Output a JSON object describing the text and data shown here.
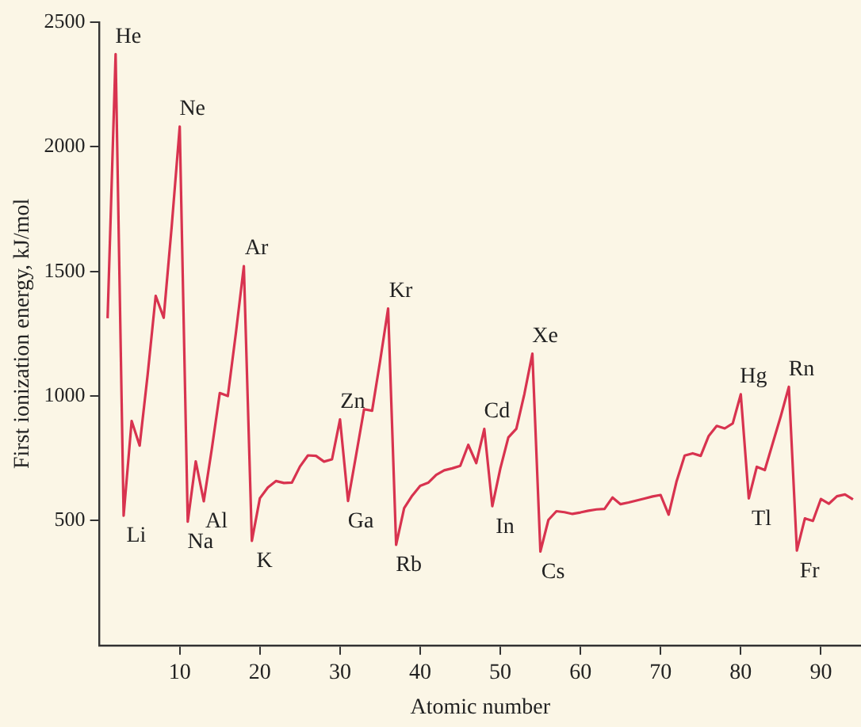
{
  "chart_data": {
    "type": "line",
    "xlabel": "Atomic number",
    "ylabel": "First ionization energy, kJ/mol",
    "x": [
      1,
      2,
      3,
      4,
      5,
      6,
      7,
      8,
      9,
      10,
      11,
      12,
      13,
      14,
      15,
      16,
      17,
      18,
      19,
      20,
      21,
      22,
      23,
      24,
      25,
      26,
      27,
      28,
      29,
      30,
      31,
      32,
      33,
      34,
      35,
      36,
      37,
      38,
      39,
      40,
      41,
      42,
      43,
      44,
      45,
      46,
      47,
      48,
      49,
      50,
      51,
      52,
      53,
      54,
      55,
      56,
      57,
      58,
      59,
      60,
      61,
      62,
      63,
      64,
      65,
      66,
      67,
      68,
      69,
      70,
      71,
      72,
      73,
      74,
      75,
      76,
      77,
      78,
      79,
      80,
      81,
      82,
      83,
      84,
      85,
      86,
      87,
      88,
      89,
      90,
      91,
      92,
      93,
      94
    ],
    "series": [
      {
        "color": "#d8334f",
        "values": [
          1312,
          2372,
          520,
          900,
          801,
          1086,
          1402,
          1314,
          1681,
          2081,
          496,
          738,
          578,
          787,
          1012,
          1000,
          1251,
          1521,
          419,
          590,
          633,
          659,
          651,
          653,
          717,
          762,
          760,
          737,
          746,
          906,
          579,
          762,
          947,
          941,
          1140,
          1351,
          403,
          550,
          600,
          640,
          652,
          684,
          702,
          710,
          720,
          804,
          731,
          868,
          558,
          709,
          834,
          869,
          1008,
          1170,
          376,
          503,
          538,
          534,
          527,
          533,
          540,
          545,
          547,
          593,
          566,
          573,
          581,
          589,
          597,
          603,
          524,
          659,
          761,
          770,
          760,
          840,
          880,
          870,
          890,
          1007,
          589,
          716,
          703,
          812,
          920,
          1037,
          380,
          509,
          499,
          587,
          568,
          598,
          605,
          585
        ]
      }
    ],
    "xlim": [
      0,
      95
    ],
    "xticks": [
      10,
      20,
      30,
      40,
      50,
      60,
      70,
      80,
      90
    ],
    "ylim": [
      0,
      2500
    ],
    "yticks": [
      500,
      1000,
      1500,
      2000,
      2500
    ],
    "grid": false,
    "legend": false,
    "marker": "none",
    "line_style": "solid",
    "annotations": [
      {
        "text": "He",
        "x": 2,
        "y": 2372
      },
      {
        "text": "Li",
        "x": 3,
        "y": 520
      },
      {
        "text": "Ne",
        "x": 10,
        "y": 2081
      },
      {
        "text": "Na",
        "x": 11,
        "y": 496
      },
      {
        "text": "Al",
        "x": 13,
        "y": 578
      },
      {
        "text": "Ar",
        "x": 18,
        "y": 1521
      },
      {
        "text": "K",
        "x": 19,
        "y": 419
      },
      {
        "text": "Zn",
        "x": 30,
        "y": 906
      },
      {
        "text": "Ga",
        "x": 31,
        "y": 579
      },
      {
        "text": "Kr",
        "x": 36,
        "y": 1351
      },
      {
        "text": "Rb",
        "x": 37,
        "y": 403
      },
      {
        "text": "Cd",
        "x": 48,
        "y": 868
      },
      {
        "text": "In",
        "x": 49,
        "y": 558
      },
      {
        "text": "Xe",
        "x": 54,
        "y": 1170
      },
      {
        "text": "Cs",
        "x": 55,
        "y": 376
      },
      {
        "text": "Hg",
        "x": 80,
        "y": 1007
      },
      {
        "text": "Tl",
        "x": 81,
        "y": 589
      },
      {
        "text": "Rn",
        "x": 86,
        "y": 1037
      },
      {
        "text": "Fr",
        "x": 87,
        "y": 380
      }
    ]
  }
}
